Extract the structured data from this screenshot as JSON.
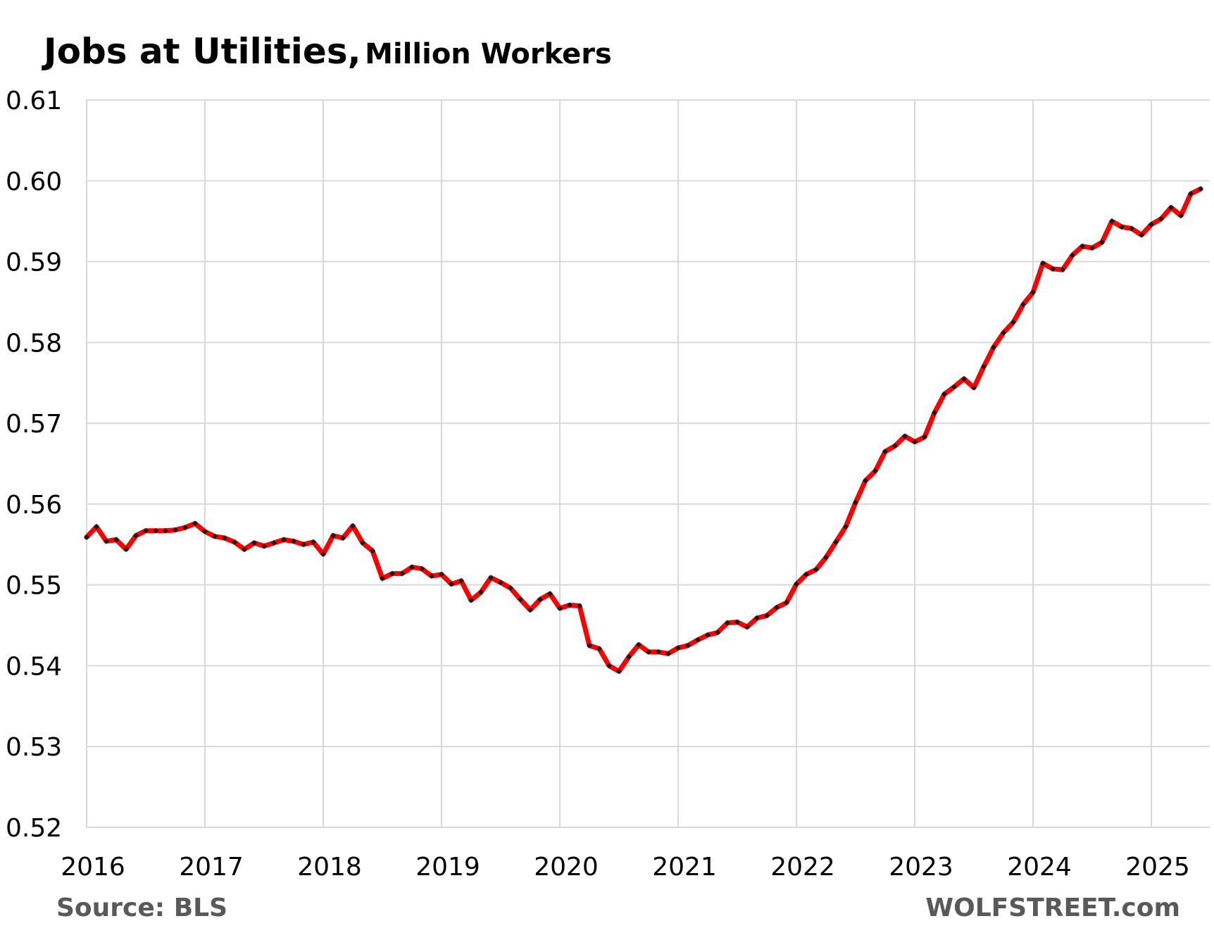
{
  "chart_data": {
    "type": "line",
    "title": "Jobs at Utilities,",
    "subtitle": "Million Workers",
    "xlabel": "",
    "ylabel": "",
    "x_range": [
      "2016-01",
      "2025-06"
    ],
    "x_ticks": [
      "2016",
      "2017",
      "2018",
      "2019",
      "2020",
      "2021",
      "2022",
      "2023",
      "2024",
      "2025"
    ],
    "ylim": [
      0.52,
      0.61
    ],
    "y_ticks": [
      "0.52",
      "0.53",
      "0.54",
      "0.55",
      "0.56",
      "0.57",
      "0.58",
      "0.59",
      "0.60",
      "0.61"
    ],
    "grid": true,
    "legend": "none",
    "series": [
      {
        "line_color": "#FF0000",
        "marker_color": "#1A1A1A",
        "x": [
          "2016-01",
          "2016-02",
          "2016-03",
          "2016-04",
          "2016-05",
          "2016-06",
          "2016-07",
          "2016-08",
          "2016-09",
          "2016-10",
          "2016-11",
          "2016-12",
          "2017-01",
          "2017-02",
          "2017-03",
          "2017-04",
          "2017-05",
          "2017-06",
          "2017-07",
          "2017-08",
          "2017-09",
          "2017-10",
          "2017-11",
          "2017-12",
          "2018-01",
          "2018-02",
          "2018-03",
          "2018-04",
          "2018-05",
          "2018-06",
          "2018-07",
          "2018-08",
          "2018-09",
          "2018-10",
          "2018-11",
          "2018-12",
          "2019-01",
          "2019-02",
          "2019-03",
          "2019-04",
          "2019-05",
          "2019-06",
          "2019-07",
          "2019-08",
          "2019-09",
          "2019-10",
          "2019-11",
          "2019-12",
          "2020-01",
          "2020-02",
          "2020-03",
          "2020-04",
          "2020-05",
          "2020-06",
          "2020-07",
          "2020-08",
          "2020-09",
          "2020-10",
          "2020-11",
          "2020-12",
          "2021-01",
          "2021-02",
          "2021-03",
          "2021-04",
          "2021-05",
          "2021-06",
          "2021-07",
          "2021-08",
          "2021-09",
          "2021-10",
          "2021-11",
          "2021-12",
          "2022-01",
          "2022-02",
          "2022-03",
          "2022-04",
          "2022-05",
          "2022-06",
          "2022-07",
          "2022-08",
          "2022-09",
          "2022-10",
          "2022-11",
          "2022-12",
          "2023-01",
          "2023-02",
          "2023-03",
          "2023-04",
          "2023-05",
          "2023-06",
          "2023-07",
          "2023-08",
          "2023-09",
          "2023-10",
          "2023-11",
          "2023-12",
          "2024-01",
          "2024-02",
          "2024-03",
          "2024-04",
          "2024-05",
          "2024-06",
          "2024-07",
          "2024-08",
          "2024-09",
          "2024-10",
          "2024-11",
          "2024-12",
          "2025-01",
          "2025-02",
          "2025-03",
          "2025-04",
          "2025-05",
          "2025-06"
        ],
        "values": [
          0.5559,
          0.5572,
          0.5554,
          0.5556,
          0.5544,
          0.5561,
          0.5567,
          0.5567,
          0.5567,
          0.5568,
          0.5571,
          0.5576,
          0.5566,
          0.556,
          0.5558,
          0.5553,
          0.5544,
          0.5552,
          0.5548,
          0.5552,
          0.5556,
          0.5554,
          0.555,
          0.5553,
          0.5538,
          0.5561,
          0.5558,
          0.5573,
          0.5552,
          0.5542,
          0.5508,
          0.5514,
          0.5514,
          0.5522,
          0.552,
          0.5511,
          0.5513,
          0.5501,
          0.5505,
          0.5481,
          0.5491,
          0.5509,
          0.5503,
          0.5496,
          0.5482,
          0.5469,
          0.5482,
          0.5489,
          0.5471,
          0.5475,
          0.5474,
          0.5425,
          0.5421,
          0.54,
          0.5393,
          0.5411,
          0.5426,
          0.5417,
          0.5417,
          0.5415,
          0.5422,
          0.5425,
          0.5432,
          0.5438,
          0.5441,
          0.5453,
          0.5454,
          0.5448,
          0.5459,
          0.5462,
          0.5472,
          0.5478,
          0.5501,
          0.5513,
          0.5519,
          0.5534,
          0.5553,
          0.5572,
          0.5602,
          0.5629,
          0.5641,
          0.5665,
          0.5672,
          0.5684,
          0.5677,
          0.5683,
          0.5713,
          0.5736,
          0.5745,
          0.5755,
          0.5744,
          0.577,
          0.5794,
          0.5812,
          0.5825,
          0.5847,
          0.5862,
          0.5898,
          0.5891,
          0.589,
          0.5908,
          0.5919,
          0.5917,
          0.5924,
          0.595,
          0.5943,
          0.5941,
          0.5933,
          0.5946,
          0.5953,
          0.5967,
          0.5957,
          0.5984,
          0.599
        ]
      }
    ]
  },
  "footer": {
    "source": "Source: BLS",
    "brand": "WOLFSTREET.com"
  }
}
